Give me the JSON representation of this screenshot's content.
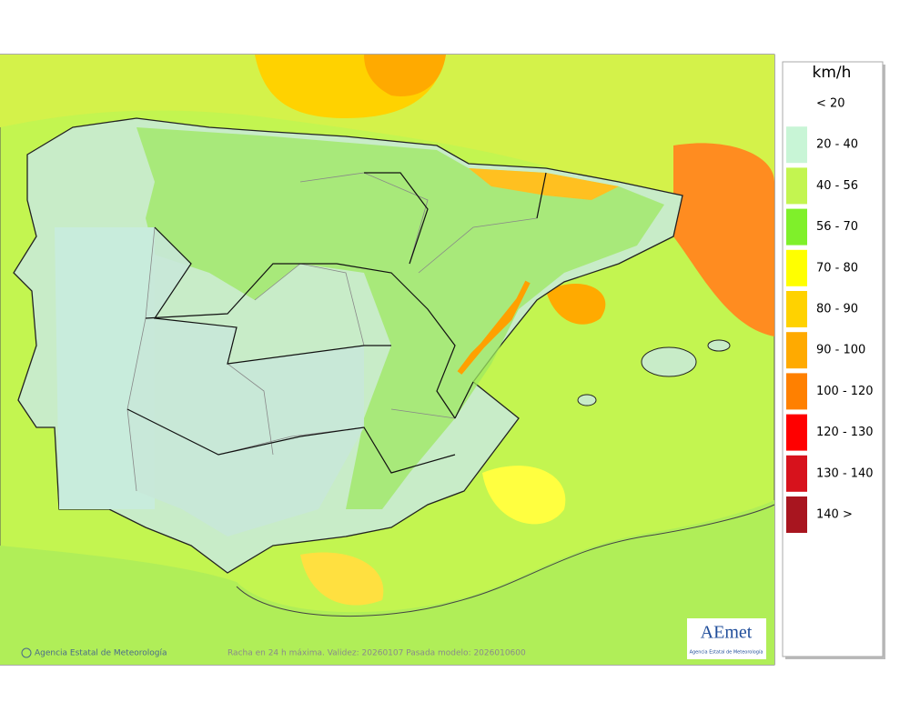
{
  "legend": {
    "unit": "km/h",
    "items": [
      {
        "label": "< 20",
        "color": "#ffffff"
      },
      {
        "label": "20 - 40",
        "color": "#c8f5d6"
      },
      {
        "label": "40 - 56",
        "color": "#c3f550"
      },
      {
        "label": "56 - 70",
        "color": "#7ff02a"
      },
      {
        "label": "70 - 80",
        "color": "#ffff00"
      },
      {
        "label": "80 - 90",
        "color": "#ffd200"
      },
      {
        "label": "90 - 100",
        "color": "#ffaa00"
      },
      {
        "label": "100 - 120",
        "color": "#ff8000"
      },
      {
        "label": "120 - 130",
        "color": "#ff0000"
      },
      {
        "label": "130 - 140",
        "color": "#d7121c"
      },
      {
        "label": "140 >",
        "color": "#a8151f"
      }
    ]
  },
  "footer": {
    "credit": "Agencia Estatal de Meteorología",
    "caption": "Racha en 24 h máxima. Validez: 20260107 Pasada modelo: 2026010600"
  },
  "logo": {
    "name": "AEmet",
    "subtitle": "Agencia Estatal de Meteorología"
  }
}
